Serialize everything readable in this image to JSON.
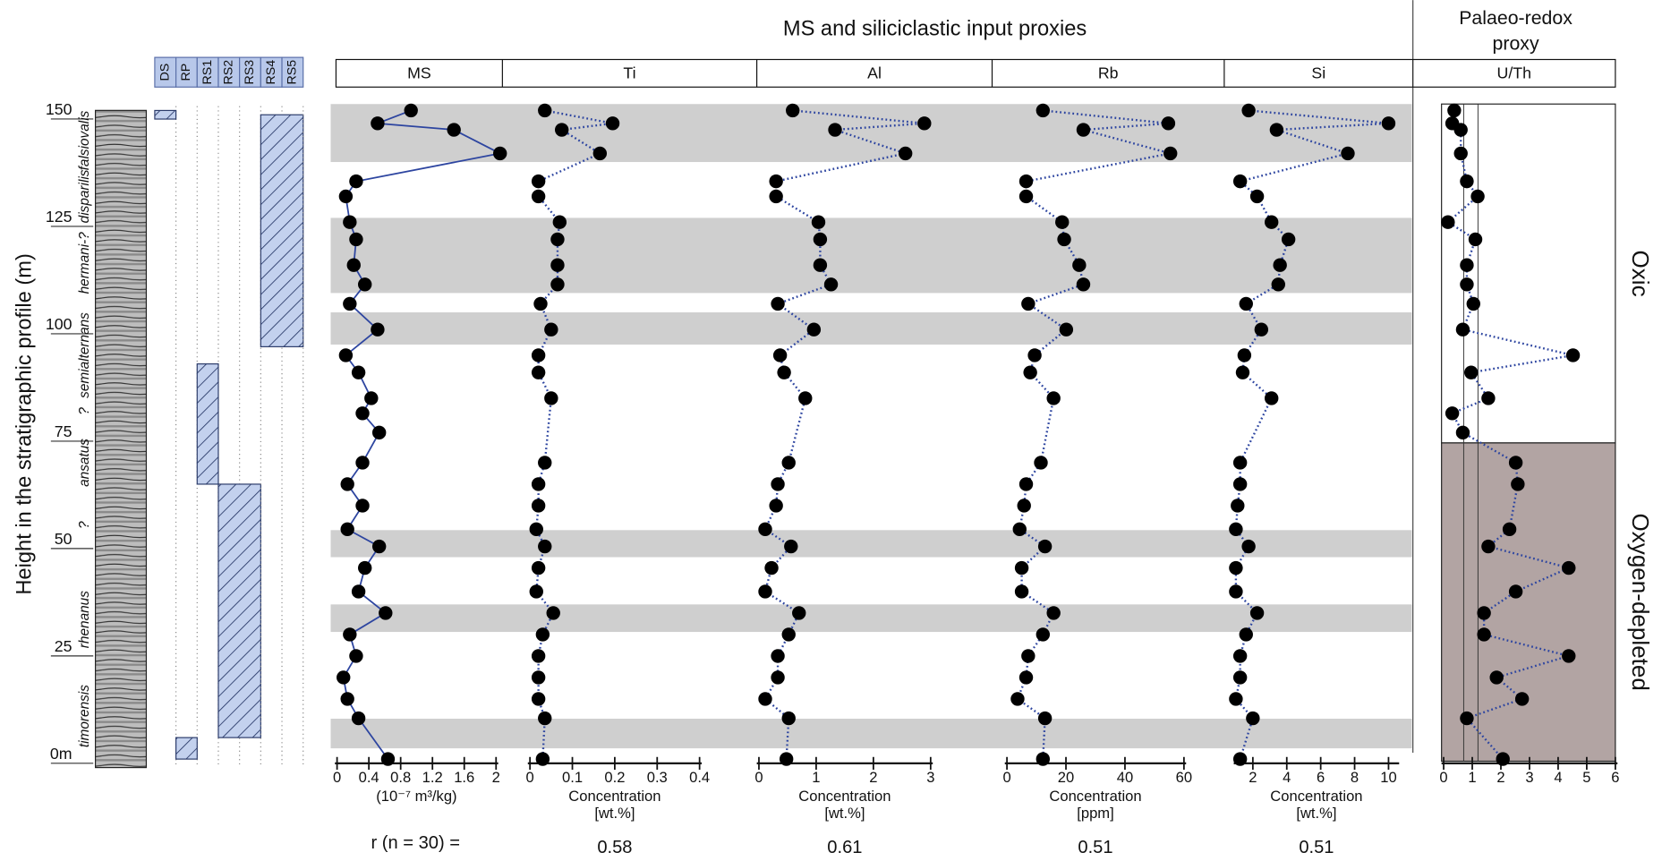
{
  "headers": {
    "siliciclastic": "MS and siliciclastic input proxies",
    "redox": [
      "Palaeo-redox",
      "proxy"
    ]
  },
  "chart_data": {
    "type": "profile",
    "y_label": "Height in the stratigraphic profile (m)",
    "ylim": [
      -0.5,
      152.5
    ],
    "yticks": [
      {
        "value": 0,
        "label": "0m"
      },
      25,
      50,
      75,
      100,
      125,
      150
    ],
    "shaded_intervals": [
      [
        139,
        152.5
      ],
      [
        108.5,
        126
      ],
      [
        96.5,
        104
      ],
      [
        47,
        53.3
      ],
      [
        29.6,
        36
      ],
      [
        2.5,
        9.4
      ]
    ],
    "zones": [
      {
        "name": "falsiovalis",
        "from": 137,
        "to": 151
      },
      {
        "name": "disparilis",
        "from": 125,
        "to": 137
      },
      {
        "name": "hermani-?",
        "from": 106,
        "to": 125
      },
      {
        "name": "semialternans",
        "from": 84,
        "to": 104
      },
      {
        "name": "?",
        "from": 79,
        "to": 83
      },
      {
        "name": "ansatus",
        "from": 62,
        "to": 76
      },
      {
        "name": "?",
        "from": 52,
        "to": 57
      },
      {
        "name": "rhenanus",
        "from": 20,
        "to": 45
      },
      {
        "name": "timorensis",
        "from": 3,
        "to": 17
      }
    ],
    "log_columns": [
      {
        "name": "DS",
        "intervals": [
          [
            149,
            151
          ]
        ]
      },
      {
        "name": "RP",
        "intervals": [
          [
            0,
            5
          ]
        ]
      },
      {
        "name": "RS1",
        "intervals": [
          [
            64,
            92
          ]
        ]
      },
      {
        "name": "RS2",
        "intervals": [
          [
            5,
            64
          ]
        ]
      },
      {
        "name": "RS3",
        "intervals": []
      },
      {
        "name": "RS4",
        "intervals": [
          [
            96,
            150
          ]
        ]
      },
      {
        "name": "RS5",
        "intervals": []
      }
    ],
    "r_label": "r (n = 30) =",
    "series": [
      {
        "name": "MS",
        "color": "#2d45a0",
        "dashed": false,
        "xlim": [
          0,
          2
        ],
        "xticks": [
          0,
          0.4,
          0.8,
          1.2,
          1.6,
          2
        ],
        "xlabel": [
          "(10⁻⁷ m³/kg)"
        ],
        "y": [
          151,
          148,
          146.5,
          141,
          134.5,
          131,
          125,
          121,
          115,
          110.5,
          106,
          100,
          94,
          90,
          84,
          80.5,
          76,
          69,
          64,
          59,
          53.5,
          49.5,
          44.5,
          39,
          34,
          29,
          24,
          19,
          14,
          9.5,
          0
        ],
        "values": [
          0.93,
          0.51,
          1.47,
          2.05,
          0.24,
          0.11,
          0.16,
          0.24,
          0.21,
          0.35,
          0.16,
          0.51,
          0.11,
          0.27,
          0.43,
          0.32,
          0.53,
          0.32,
          0.13,
          0.32,
          0.13,
          0.53,
          0.35,
          0.27,
          0.61,
          0.16,
          0.24,
          0.08,
          0.13,
          0.27,
          0.64
        ]
      },
      {
        "name": "Ti",
        "color": "#2d45a0",
        "dashed": true,
        "xlim": [
          0,
          0.4
        ],
        "xticks": [
          0,
          0.1,
          0.2,
          0.3,
          0.4
        ],
        "xlabel": [
          "Concentration",
          "[wt.%]"
        ],
        "r": 0.58,
        "y": [
          151,
          148,
          146.5,
          141,
          134.5,
          131,
          125,
          121,
          115,
          110.5,
          106,
          100,
          94,
          90,
          84,
          69,
          64,
          59,
          53.5,
          49.5,
          44.5,
          39,
          34,
          29,
          24,
          19,
          14,
          9.5,
          0
        ],
        "values": [
          0.035,
          0.195,
          0.075,
          0.165,
          0.02,
          0.02,
          0.07,
          0.065,
          0.065,
          0.065,
          0.025,
          0.05,
          0.02,
          0.02,
          0.05,
          0.035,
          0.02,
          0.02,
          0.015,
          0.035,
          0.02,
          0.015,
          0.055,
          0.03,
          0.02,
          0.02,
          0.02,
          0.035,
          0.03
        ]
      },
      {
        "name": "Al",
        "color": "#2d45a0",
        "dashed": true,
        "xlim": [
          0,
          3
        ],
        "xticks": [
          0,
          1,
          2,
          3
        ],
        "xlabel": [
          "Concentration",
          "[wt.%]"
        ],
        "r": 0.61,
        "y": [
          151,
          148,
          146.5,
          141,
          134.5,
          131,
          125,
          121,
          115,
          110.5,
          106,
          100,
          94,
          90,
          84,
          69,
          64,
          59,
          53.5,
          49.5,
          44.5,
          39,
          34,
          29,
          24,
          19,
          14,
          9.5,
          0
        ],
        "values": [
          0.59,
          2.89,
          1.33,
          2.56,
          0.3,
          0.3,
          1.04,
          1.07,
          1.07,
          1.26,
          0.33,
          0.96,
          0.37,
          0.44,
          0.81,
          0.52,
          0.33,
          0.3,
          0.11,
          0.56,
          0.22,
          0.11,
          0.7,
          0.52,
          0.33,
          0.33,
          0.11,
          0.52,
          0.48
        ]
      },
      {
        "name": "Rb",
        "color": "#2d45a0",
        "dashed": true,
        "xlim": [
          0,
          60
        ],
        "xticks": [
          0,
          20,
          40,
          60
        ],
        "xlabel": [
          "Concentration",
          "[ppm]"
        ],
        "r": 0.51,
        "y": [
          151,
          148,
          146.5,
          141,
          134.5,
          131,
          125,
          121,
          115,
          110.5,
          106,
          100,
          94,
          90,
          84,
          69,
          64,
          59,
          53.5,
          49.5,
          44.5,
          39,
          34,
          29,
          24,
          19,
          14,
          9.5,
          0
        ],
        "values": [
          12.2,
          54.7,
          25.9,
          55.4,
          6.5,
          6.5,
          18.7,
          19.4,
          24.5,
          25.9,
          7.2,
          20.1,
          9.4,
          7.9,
          15.8,
          11.5,
          6.5,
          5.8,
          4.3,
          12.9,
          5,
          5,
          15.8,
          12.2,
          7.2,
          6.5,
          3.6,
          12.9,
          12.2
        ]
      },
      {
        "name": "Si",
        "color": "#2d45a0",
        "dashed": true,
        "xlim": [
          1,
          10.5
        ],
        "xticks": [
          2,
          4,
          6,
          8,
          10
        ],
        "xlabel": [
          "Concentration",
          "[wt.%]"
        ],
        "r": 0.51,
        "y": [
          151,
          148,
          146.5,
          141,
          134.5,
          131,
          125,
          121,
          115,
          110.5,
          106,
          100,
          94,
          90,
          84,
          69,
          64,
          59,
          53.5,
          49.5,
          44.5,
          39,
          34,
          29,
          24,
          19,
          14,
          9.5,
          0
        ],
        "values": [
          1.75,
          10,
          3.4,
          7.6,
          1.25,
          2.25,
          3.1,
          4.1,
          3.6,
          3.5,
          1.6,
          2.5,
          1.5,
          1.4,
          3.1,
          1.25,
          1.25,
          1.1,
          1,
          1.75,
          1,
          1,
          2.25,
          1.6,
          1.25,
          1.25,
          1,
          2,
          1.25
        ]
      },
      {
        "name": "U/Th",
        "color": "#2d45a0",
        "dashed": true,
        "xlim": [
          0,
          6
        ],
        "xticks": [
          0,
          1,
          2,
          3,
          4,
          5,
          6
        ],
        "reference_lines": [
          0.7,
          1.2
        ],
        "regions": [
          {
            "name": "Oxic",
            "from": 73.6,
            "to": 152.5,
            "color": "#ffffff"
          },
          {
            "name": "Oxygen-depleted",
            "from": -0.5,
            "to": 73.6,
            "color": "#b2a4a3"
          }
        ],
        "y": [
          151,
          148,
          146.5,
          141,
          134.5,
          131,
          125,
          121,
          115,
          110.5,
          106,
          100,
          94,
          90,
          84,
          80.5,
          76,
          69,
          64,
          53.5,
          49.5,
          44.5,
          39,
          34,
          29,
          24,
          19,
          14,
          9.5,
          0
        ],
        "values": [
          0.37,
          0.3,
          0.6,
          0.6,
          0.81,
          1.19,
          0.15,
          1.11,
          0.81,
          0.81,
          1.04,
          0.67,
          4.52,
          0.96,
          1.56,
          0.3,
          0.67,
          2.52,
          2.59,
          2.3,
          1.56,
          4.37,
          2.52,
          1.41,
          1.41,
          4.37,
          1.85,
          2.74,
          0.81,
          2.07
        ]
      }
    ]
  }
}
